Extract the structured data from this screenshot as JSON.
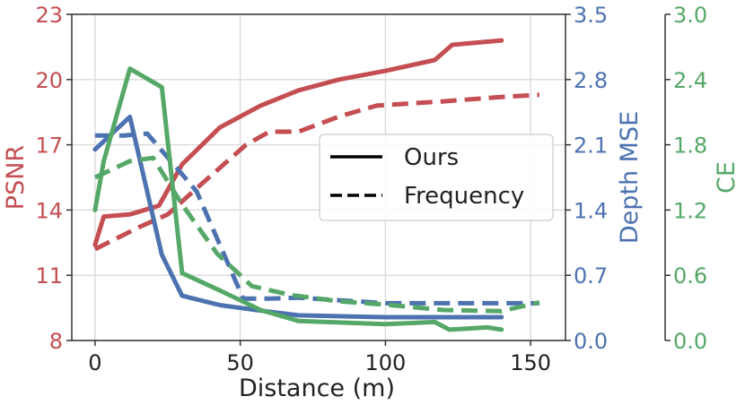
{
  "chart_data": {
    "type": "line",
    "xlabel": "Distance (m)",
    "xlim": [
      -8,
      162
    ],
    "xticks": [
      0,
      50,
      100,
      150
    ],
    "axes": {
      "psnr": {
        "label": "PSNR",
        "ylim": [
          8,
          23
        ],
        "ticks": [
          "8",
          "11",
          "14",
          "17",
          "20",
          "23"
        ],
        "color": "#c44e52"
      },
      "depth": {
        "label": "Depth MSE",
        "ylim": [
          0.0,
          3.5
        ],
        "ticks": [
          "0.0",
          "0.7",
          "1.4",
          "2.1",
          "2.8",
          "3.5"
        ],
        "color": "#4c72b0"
      },
      "ce": {
        "label": "CE",
        "ylim": [
          0.0,
          3.0
        ],
        "ticks": [
          "0.0",
          "0.6",
          "1.2",
          "1.8",
          "2.4",
          "3.0"
        ],
        "color": "#55a868"
      }
    },
    "legend": {
      "position": "center-right",
      "entries": [
        {
          "label": "Ours",
          "style": "solid"
        },
        {
          "label": "Frequency",
          "style": "dashed"
        }
      ]
    },
    "series": [
      {
        "name": "PSNR Ours",
        "axis": "psnr",
        "style": "solid",
        "points": [
          [
            0,
            12.4
          ],
          [
            3,
            13.7
          ],
          [
            12,
            13.8
          ],
          [
            22,
            14.2
          ],
          [
            30,
            16.1
          ],
          [
            43,
            17.8
          ],
          [
            57,
            18.8
          ],
          [
            70,
            19.5
          ],
          [
            84,
            20.0
          ],
          [
            100,
            20.4
          ],
          [
            117,
            20.9
          ],
          [
            123,
            21.6
          ],
          [
            140,
            21.8
          ]
        ]
      },
      {
        "name": "PSNR Frequency",
        "axis": "psnr",
        "style": "dashed",
        "points": [
          [
            0,
            12.2
          ],
          [
            15,
            13.2
          ],
          [
            25,
            13.8
          ],
          [
            35,
            15.0
          ],
          [
            52,
            17.0
          ],
          [
            60,
            17.6
          ],
          [
            70,
            17.6
          ],
          [
            84,
            18.3
          ],
          [
            97,
            18.8
          ],
          [
            120,
            19.0
          ],
          [
            140,
            19.2
          ],
          [
            153,
            19.3
          ]
        ]
      },
      {
        "name": "Depth MSE Ours",
        "axis": "depth",
        "style": "solid",
        "points": [
          [
            0,
            2.05
          ],
          [
            12,
            2.4
          ],
          [
            23,
            0.92
          ],
          [
            30,
            0.48
          ],
          [
            43,
            0.38
          ],
          [
            57,
            0.32
          ],
          [
            70,
            0.27
          ],
          [
            100,
            0.25
          ],
          [
            120,
            0.25
          ],
          [
            140,
            0.25
          ]
        ]
      },
      {
        "name": "Depth MSE Frequency",
        "axis": "depth",
        "style": "dashed",
        "points": [
          [
            0,
            2.2
          ],
          [
            10,
            2.2
          ],
          [
            18,
            2.22
          ],
          [
            35,
            1.6
          ],
          [
            51,
            0.45
          ],
          [
            60,
            0.45
          ],
          [
            70,
            0.46
          ],
          [
            100,
            0.4
          ],
          [
            120,
            0.4
          ],
          [
            153,
            0.4
          ]
        ]
      },
      {
        "name": "CE Ours",
        "axis": "ce",
        "style": "solid",
        "points": [
          [
            0,
            1.2
          ],
          [
            3,
            1.65
          ],
          [
            12,
            2.5
          ],
          [
            23,
            2.33
          ],
          [
            30,
            0.62
          ],
          [
            43,
            0.46
          ],
          [
            57,
            0.28
          ],
          [
            70,
            0.18
          ],
          [
            100,
            0.15
          ],
          [
            117,
            0.17
          ],
          [
            122,
            0.1
          ],
          [
            135,
            0.12
          ],
          [
            140,
            0.1
          ]
        ]
      },
      {
        "name": "CE Frequency",
        "axis": "ce",
        "style": "dashed",
        "points": [
          [
            0,
            1.5
          ],
          [
            12,
            1.65
          ],
          [
            20,
            1.68
          ],
          [
            30,
            1.25
          ],
          [
            42,
            0.8
          ],
          [
            54,
            0.5
          ],
          [
            67,
            0.42
          ],
          [
            84,
            0.36
          ],
          [
            100,
            0.33
          ],
          [
            120,
            0.28
          ],
          [
            140,
            0.27
          ],
          [
            153,
            0.35
          ]
        ]
      }
    ]
  }
}
